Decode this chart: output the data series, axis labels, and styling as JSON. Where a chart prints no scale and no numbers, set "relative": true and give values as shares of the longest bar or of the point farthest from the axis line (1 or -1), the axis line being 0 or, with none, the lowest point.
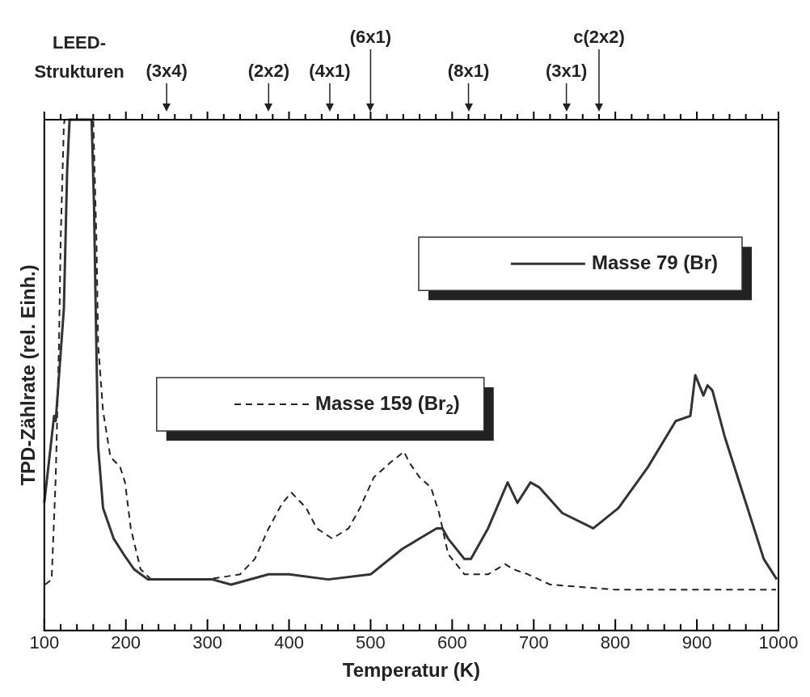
{
  "chart_data": {
    "type": "line",
    "relative": true,
    "xlabel": "Temperatur (K)",
    "ylabel": "TPD-Zählrate (rel. Einh.)",
    "annotations": [
      "LEED-Strukturen"
    ],
    "xlim": [
      100,
      1000
    ],
    "xticks": [
      100,
      {
        "value": 120,
        "label": null
      },
      {
        "value": 140,
        "label": null
      },
      {
        "value": 160,
        "label": null
      },
      {
        "value": 180,
        "label": null
      },
      200,
      {
        "value": 220,
        "label": null
      },
      {
        "value": 240,
        "label": null
      },
      {
        "value": 260,
        "label": null
      },
      {
        "value": 280,
        "label": null
      },
      300,
      {
        "value": 320,
        "label": null
      },
      {
        "value": 340,
        "label": null
      },
      {
        "value": 360,
        "label": null
      },
      {
        "value": 380,
        "label": null
      },
      400,
      {
        "value": 420,
        "label": null
      },
      {
        "value": 440,
        "label": null
      },
      {
        "value": 460,
        "label": null
      },
      {
        "value": 480,
        "label": null
      },
      500,
      {
        "value": 520,
        "label": null
      },
      {
        "value": 540,
        "label": null
      },
      {
        "value": 560,
        "label": null
      },
      {
        "value": 580,
        "label": null
      },
      600,
      {
        "value": 620,
        "label": null
      },
      {
        "value": 640,
        "label": null
      },
      {
        "value": 660,
        "label": null
      },
      {
        "value": 680,
        "label": null
      },
      700,
      {
        "value": 720,
        "label": null
      },
      {
        "value": 740,
        "label": null
      },
      {
        "value": 760,
        "label": null
      },
      {
        "value": 780,
        "label": null
      },
      800,
      {
        "value": 820,
        "label": null
      },
      {
        "value": 840,
        "label": null
      },
      {
        "value": 860,
        "label": null
      },
      {
        "value": 880,
        "label": null
      },
      900,
      {
        "value": 920,
        "label": null
      },
      {
        "value": 940,
        "label": null
      },
      {
        "value": 960,
        "label": null
      },
      {
        "value": 980,
        "label": null
      },
      1000
    ],
    "ref_lines": [
      {
        "axis": "x",
        "value": 250,
        "label": "(3x4)"
      },
      {
        "axis": "x",
        "value": 375,
        "label": "(2x2)"
      },
      {
        "axis": "x",
        "value": 450,
        "label": "(4x1)"
      },
      {
        "axis": "x",
        "value": 500,
        "label": "(6x1)"
      },
      {
        "axis": "x",
        "value": 620,
        "label": "(8x1)"
      },
      {
        "axis": "x",
        "value": 740,
        "label": "(3x1)"
      },
      {
        "axis": "x",
        "value": 780,
        "label": "c(2x2)"
      }
    ],
    "legend": "right",
    "grid": false,
    "marker": "none",
    "series": [
      {
        "name": "Masse 79 (Br)",
        "color": "#333333",
        "line_style": "solid",
        "x": [
          100,
          112,
          114,
          124,
          128,
          131,
          158,
          161,
          163,
          166,
          172,
          185,
          197,
          210,
          227,
          248,
          306,
          329,
          375,
          400,
          448,
          500,
          539,
          560,
          581,
          588,
          595,
          615,
          623,
          644,
          668,
          680,
          696,
          707,
          735,
          773,
          804,
          840,
          874,
          892,
          898,
          908,
          913,
          919,
          934,
          958,
          982,
          998
        ],
        "values": [
          0.25,
          0.42,
          0.41,
          0.63,
          0.9,
          1,
          1,
          0.83,
          0.63,
          0.36,
          0.24,
          0.18,
          0.15,
          0.12,
          0.1,
          0.1,
          0.1,
          0.09,
          0.11,
          0.11,
          0.1,
          0.11,
          0.16,
          0.18,
          0.2,
          0.2,
          0.18,
          0.14,
          0.14,
          0.2,
          0.29,
          0.25,
          0.29,
          0.28,
          0.23,
          0.2,
          0.24,
          0.32,
          0.41,
          0.42,
          0.5,
          0.46,
          0.48,
          0.47,
          0.38,
          0.26,
          0.14,
          0.1
        ]
      },
      {
        "name": "Masse 159 (Br$_{2}$)",
        "color": "#222222",
        "line_style": "dashed",
        "x": [
          101,
          109,
          114,
          118,
          120,
          124,
          125,
          160,
          164,
          166,
          172,
          181,
          193,
          199,
          206,
          218,
          231,
          250,
          300,
          340,
          358,
          375,
          392,
          403,
          421,
          434,
          453,
          473,
          487,
          504,
          525,
          541,
          547,
          560,
          574,
          584,
          595,
          615,
          644,
          665,
          675,
          693,
          720,
          800,
          900,
          997
        ],
        "values": [
          0.09,
          0.1,
          0.3,
          0.56,
          0.76,
          0.99,
          1,
          1,
          0.76,
          0.56,
          0.43,
          0.34,
          0.32,
          0.29,
          0.2,
          0.12,
          0.1,
          0.1,
          0.1,
          0.11,
          0.14,
          0.2,
          0.25,
          0.27,
          0.24,
          0.2,
          0.18,
          0.2,
          0.24,
          0.3,
          0.33,
          0.35,
          0.33,
          0.3,
          0.28,
          0.23,
          0.15,
          0.11,
          0.11,
          0.13,
          0.12,
          0.11,
          0.09,
          0.08,
          0.08,
          0.08
        ]
      }
    ]
  }
}
